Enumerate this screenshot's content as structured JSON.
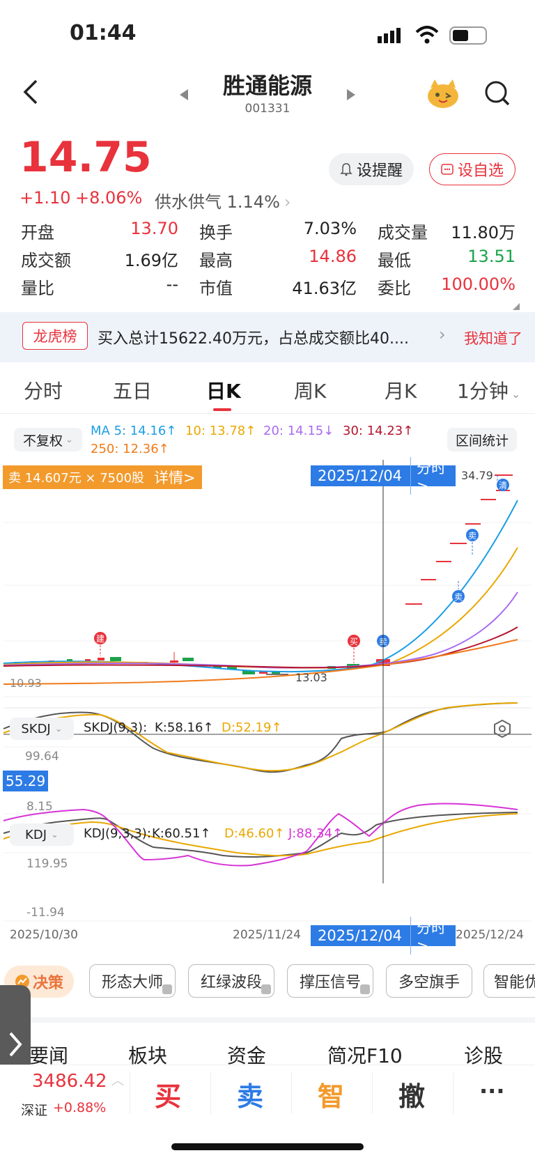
{
  "status_bar": {
    "time": "01:44"
  },
  "header": {
    "title": "胜通能源",
    "code": "001331"
  },
  "quote": {
    "price": "14.75",
    "change": "+1.10",
    "change_pct": "+8.06%",
    "sector": "供水供气 1.14%",
    "alert_label": "设提醒",
    "watch_label": "设自选"
  },
  "stats": [
    {
      "label": "开盘",
      "value": "13.70",
      "color": "#e8323c"
    },
    {
      "label": "换手",
      "value": "7.03%",
      "color": "#222222"
    },
    {
      "label": "成交量",
      "value": "11.80万",
      "color": "#222222"
    },
    {
      "label": "成交额",
      "value": "1.69亿",
      "color": "#222222"
    },
    {
      "label": "最高",
      "value": "14.86",
      "color": "#e8323c"
    },
    {
      "label": "最低",
      "value": "13.51",
      "color": "#1aa34a"
    },
    {
      "label": "量比",
      "value": "--",
      "color": "#222222"
    },
    {
      "label": "市值",
      "value": "41.63亿",
      "color": "#222222"
    },
    {
      "label": "委比",
      "value": "100.00%",
      "color": "#e8323c"
    }
  ],
  "banner": {
    "tag": "龙虎榜",
    "text": "买入总计15622.40万元，占总成交额比40....",
    "dismiss": "我知道了"
  },
  "chart_tabs": [
    "分时",
    "五日",
    "日K",
    "周K",
    "月K",
    "1分钟"
  ],
  "active_tab": "日K",
  "ma_bar": {
    "adjust": "不复权",
    "ma5": "MA 5: 14.16↑",
    "ma10": "10: 13.78↑",
    "ma20": "20: 14.15↓",
    "ma30": "30: 14.23↑",
    "ma250": "250: 12.36↑",
    "range_stats": "区间统计"
  },
  "trade_banner": {
    "text": "卖 14.607元 × 7500股",
    "detail": "详情>"
  },
  "crosshair": {
    "date": "2025/12/04",
    "link": "分时 >"
  },
  "price_chart": {
    "max_label": "34.79",
    "left_label": "10.93",
    "low_label": "13.03"
  },
  "markers": {
    "build": "建",
    "buy": "买",
    "sell": "卖",
    "clear": "清"
  },
  "skdj": {
    "name": "SKDJ",
    "params": "SKDJ(9,3):",
    "k": "K:58.16↑",
    "d": "D:52.19↑",
    "top": "99.64",
    "current": "55.29",
    "bottom": "8.15"
  },
  "kdj": {
    "name": "KDJ",
    "params": "KDJ(9,3,3):",
    "k": "K:60.51↑",
    "d": "D:46.60↑",
    "j": "J:88.34↑",
    "top": "119.95",
    "bottom": "-11.94"
  },
  "x_axis": {
    "start": "2025/10/30",
    "mid": "2025/11/24",
    "end": "2025/12/24"
  },
  "strategy": {
    "label": "决策",
    "chips": [
      "形态大师",
      "红绿波段",
      "撑压信号",
      "多空旗手",
      "智能优"
    ]
  },
  "bottom_nav": {
    "tabs": [
      "要闻",
      "板块",
      "资金",
      "简况F10",
      "诊股"
    ]
  },
  "index_info": {
    "value": "3486.42",
    "name": "深证",
    "change": "+0.88%"
  },
  "actions": {
    "buy": "买",
    "sell": "卖",
    "smart": "智",
    "cancel": "撤",
    "more": "···"
  },
  "colors": {
    "red": "#e8323c",
    "green": "#1aa34a",
    "blue": "#2d7be5",
    "orange": "#f39a2c",
    "ma5": "#1a9ee6",
    "ma10": "#e9a800",
    "ma20": "#a86bf0",
    "ma30": "#b5152c",
    "ma250": "#f07a1a"
  }
}
